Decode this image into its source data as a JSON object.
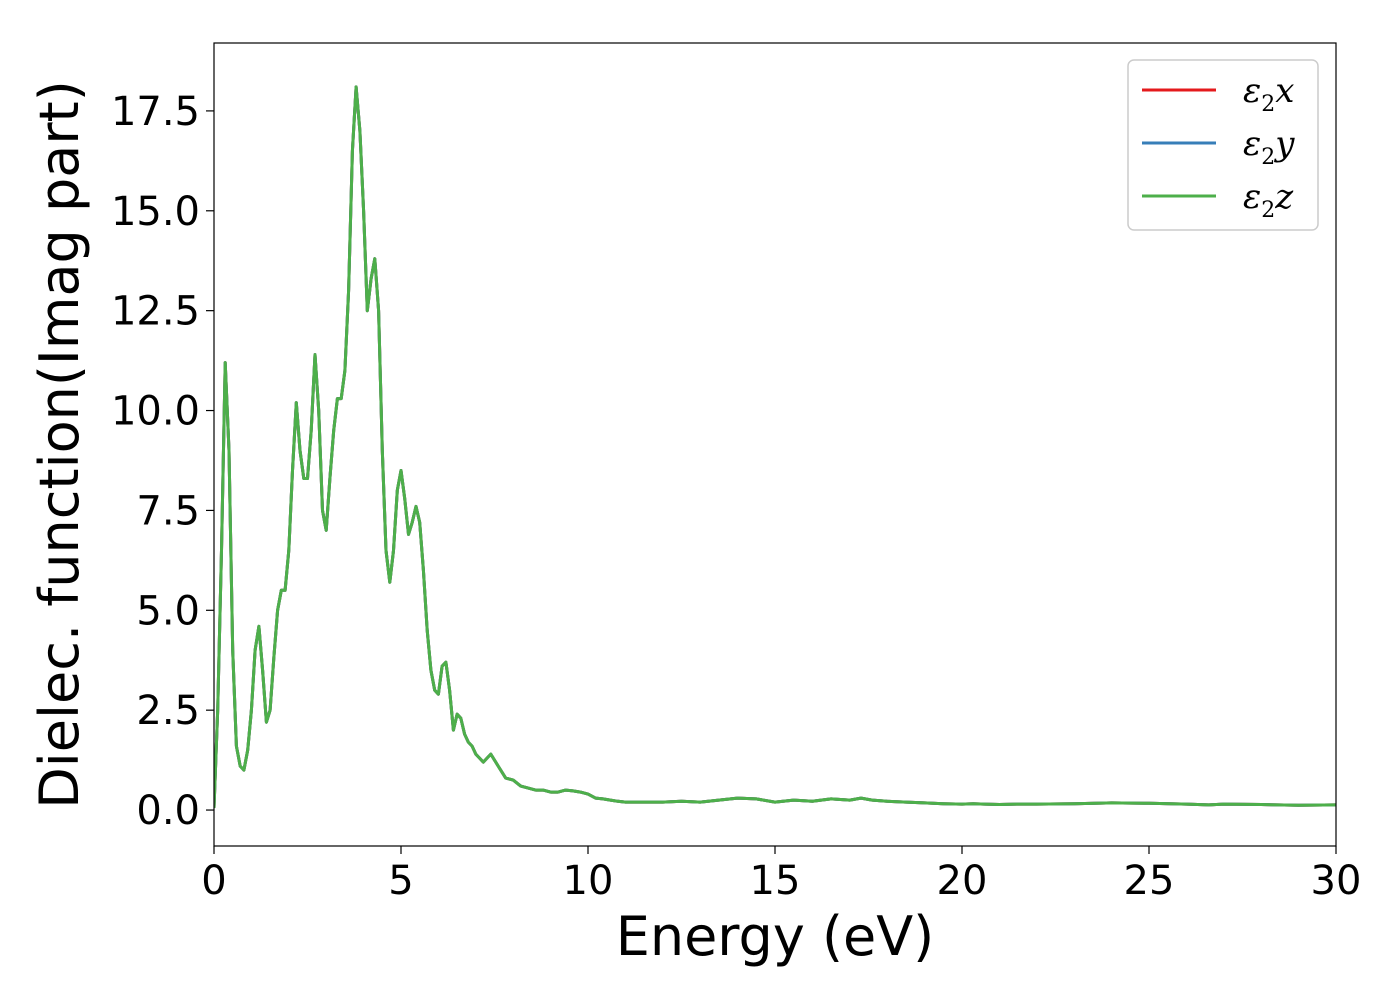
{
  "chart_data": {
    "type": "line",
    "title": "",
    "xlabel": "Energy (eV)",
    "ylabel": "Dielec. function(Imag part)",
    "xlim": [
      0,
      30
    ],
    "ylim": [
      -0.9,
      19.2
    ],
    "xticks": [
      0,
      5,
      10,
      15,
      20,
      25,
      30
    ],
    "xtick_labels": [
      "0",
      "5",
      "10",
      "15",
      "20",
      "25",
      "30"
    ],
    "yticks": [
      0.0,
      2.5,
      5.0,
      7.5,
      10.0,
      12.5,
      15.0,
      17.5
    ],
    "ytick_labels": [
      "0.0",
      "2.5",
      "5.0",
      "7.5",
      "10.0",
      "12.5",
      "15.0",
      "17.5"
    ],
    "grid": false,
    "legend_position": "upper right",
    "series": [
      {
        "name": "ε2x",
        "symbol": "ε",
        "subscript": "2",
        "suffix": "x",
        "color": "#e41a1c",
        "x": [
          0,
          0.1,
          0.2,
          0.3,
          0.4,
          0.5,
          0.6,
          0.7,
          0.8,
          0.9,
          1.0,
          1.1,
          1.2,
          1.3,
          1.4,
          1.5,
          1.6,
          1.7,
          1.8,
          1.9,
          2.0,
          2.1,
          2.2,
          2.3,
          2.4,
          2.5,
          2.6,
          2.7,
          2.8,
          2.9,
          3.0,
          3.1,
          3.2,
          3.3,
          3.4,
          3.5,
          3.6,
          3.7,
          3.8,
          3.9,
          4.0,
          4.1,
          4.2,
          4.3,
          4.4,
          4.5,
          4.6,
          4.7,
          4.8,
          4.9,
          5.0,
          5.1,
          5.2,
          5.3,
          5.4,
          5.5,
          5.6,
          5.7,
          5.8,
          5.9,
          6.0,
          6.1,
          6.2,
          6.3,
          6.4,
          6.5,
          6.6,
          6.7,
          6.8,
          6.9,
          7.0,
          7.2,
          7.4,
          7.6,
          7.8,
          8.0,
          8.2,
          8.4,
          8.6,
          8.8,
          9.0,
          9.2,
          9.4,
          9.6,
          9.8,
          10.0,
          10.2,
          10.4,
          10.6,
          10.8,
          11.0,
          11.5,
          12.0,
          12.5,
          13.0,
          13.5,
          14.0,
          14.5,
          15.0,
          15.5,
          16.0,
          16.5,
          17.0,
          17.3,
          17.6,
          18.0,
          18.5,
          19.0,
          19.5,
          20.0,
          20.3,
          20.6,
          21.0,
          21.5,
          22.0,
          23.0,
          24.0,
          25.0,
          26.0,
          26.6,
          27.0,
          28.0,
          29.0,
          30.0
        ],
        "y": [
          0.05,
          2.5,
          6.5,
          11.2,
          9.0,
          4.0,
          1.6,
          1.1,
          1.0,
          1.5,
          2.5,
          4.0,
          4.6,
          3.5,
          2.2,
          2.5,
          3.8,
          5.0,
          5.5,
          5.5,
          6.5,
          8.5,
          10.2,
          9.0,
          8.3,
          8.3,
          9.5,
          11.4,
          10.0,
          7.5,
          7.0,
          8.3,
          9.5,
          10.3,
          10.3,
          11.0,
          13.0,
          16.5,
          18.1,
          17.0,
          15.0,
          12.5,
          13.3,
          13.8,
          12.5,
          9.0,
          6.5,
          5.7,
          6.5,
          8.0,
          8.5,
          7.8,
          6.9,
          7.2,
          7.6,
          7.2,
          6.0,
          4.5,
          3.5,
          3.0,
          2.9,
          3.6,
          3.7,
          3.0,
          2.0,
          2.4,
          2.3,
          1.9,
          1.7,
          1.6,
          1.4,
          1.2,
          1.4,
          1.1,
          0.8,
          0.75,
          0.6,
          0.55,
          0.5,
          0.5,
          0.45,
          0.45,
          0.5,
          0.48,
          0.45,
          0.4,
          0.3,
          0.28,
          0.25,
          0.22,
          0.2,
          0.2,
          0.2,
          0.22,
          0.2,
          0.25,
          0.3,
          0.28,
          0.2,
          0.25,
          0.22,
          0.28,
          0.25,
          0.3,
          0.25,
          0.22,
          0.2,
          0.18,
          0.16,
          0.15,
          0.16,
          0.15,
          0.14,
          0.15,
          0.15,
          0.16,
          0.18,
          0.17,
          0.15,
          0.13,
          0.15,
          0.14,
          0.12,
          0.13
        ]
      },
      {
        "name": "ε2y",
        "symbol": "ε",
        "subscript": "2",
        "suffix": "y",
        "color": "#377eb8",
        "x": [
          0,
          0.1,
          0.2,
          0.3,
          0.4,
          0.5,
          0.6,
          0.7,
          0.8,
          0.9,
          1.0,
          1.1,
          1.2,
          1.3,
          1.4,
          1.5,
          1.6,
          1.7,
          1.8,
          1.9,
          2.0,
          2.1,
          2.2,
          2.3,
          2.4,
          2.5,
          2.6,
          2.7,
          2.8,
          2.9,
          3.0,
          3.1,
          3.2,
          3.3,
          3.4,
          3.5,
          3.6,
          3.7,
          3.8,
          3.9,
          4.0,
          4.1,
          4.2,
          4.3,
          4.4,
          4.5,
          4.6,
          4.7,
          4.8,
          4.9,
          5.0,
          5.1,
          5.2,
          5.3,
          5.4,
          5.5,
          5.6,
          5.7,
          5.8,
          5.9,
          6.0,
          6.1,
          6.2,
          6.3,
          6.4,
          6.5,
          6.6,
          6.7,
          6.8,
          6.9,
          7.0,
          7.2,
          7.4,
          7.6,
          7.8,
          8.0,
          8.2,
          8.4,
          8.6,
          8.8,
          9.0,
          9.2,
          9.4,
          9.6,
          9.8,
          10.0,
          10.2,
          10.4,
          10.6,
          10.8,
          11.0,
          11.5,
          12.0,
          12.5,
          13.0,
          13.5,
          14.0,
          14.5,
          15.0,
          15.5,
          16.0,
          16.5,
          17.0,
          17.3,
          17.6,
          18.0,
          18.5,
          19.0,
          19.5,
          20.0,
          20.3,
          20.6,
          21.0,
          21.5,
          22.0,
          23.0,
          24.0,
          25.0,
          26.0,
          26.6,
          27.0,
          28.0,
          29.0,
          30.0
        ],
        "y": [
          0.05,
          2.5,
          6.5,
          11.2,
          9.0,
          4.0,
          1.6,
          1.1,
          1.0,
          1.5,
          2.5,
          4.0,
          4.6,
          3.5,
          2.2,
          2.5,
          3.8,
          5.0,
          5.5,
          5.5,
          6.5,
          8.5,
          10.2,
          9.0,
          8.3,
          8.3,
          9.5,
          11.4,
          10.0,
          7.5,
          7.0,
          8.3,
          9.5,
          10.3,
          10.3,
          11.0,
          13.0,
          16.5,
          18.1,
          17.0,
          15.0,
          12.5,
          13.3,
          13.8,
          12.5,
          9.0,
          6.5,
          5.7,
          6.5,
          8.0,
          8.5,
          7.8,
          6.9,
          7.2,
          7.6,
          7.2,
          6.0,
          4.5,
          3.5,
          3.0,
          2.9,
          3.6,
          3.7,
          3.0,
          2.0,
          2.4,
          2.3,
          1.9,
          1.7,
          1.6,
          1.4,
          1.2,
          1.4,
          1.1,
          0.8,
          0.75,
          0.6,
          0.55,
          0.5,
          0.5,
          0.45,
          0.45,
          0.5,
          0.48,
          0.45,
          0.4,
          0.3,
          0.28,
          0.25,
          0.22,
          0.2,
          0.2,
          0.2,
          0.22,
          0.2,
          0.25,
          0.3,
          0.28,
          0.2,
          0.25,
          0.22,
          0.28,
          0.25,
          0.3,
          0.25,
          0.22,
          0.2,
          0.18,
          0.16,
          0.15,
          0.16,
          0.15,
          0.14,
          0.15,
          0.15,
          0.16,
          0.18,
          0.17,
          0.15,
          0.13,
          0.15,
          0.14,
          0.12,
          0.13
        ]
      },
      {
        "name": "ε2z",
        "symbol": "ε",
        "subscript": "2",
        "suffix": "z",
        "color": "#4daf4a",
        "x": [
          0,
          0.1,
          0.2,
          0.3,
          0.4,
          0.5,
          0.6,
          0.7,
          0.8,
          0.9,
          1.0,
          1.1,
          1.2,
          1.3,
          1.4,
          1.5,
          1.6,
          1.7,
          1.8,
          1.9,
          2.0,
          2.1,
          2.2,
          2.3,
          2.4,
          2.5,
          2.6,
          2.7,
          2.8,
          2.9,
          3.0,
          3.1,
          3.2,
          3.3,
          3.4,
          3.5,
          3.6,
          3.7,
          3.8,
          3.9,
          4.0,
          4.1,
          4.2,
          4.3,
          4.4,
          4.5,
          4.6,
          4.7,
          4.8,
          4.9,
          5.0,
          5.1,
          5.2,
          5.3,
          5.4,
          5.5,
          5.6,
          5.7,
          5.8,
          5.9,
          6.0,
          6.1,
          6.2,
          6.3,
          6.4,
          6.5,
          6.6,
          6.7,
          6.8,
          6.9,
          7.0,
          7.2,
          7.4,
          7.6,
          7.8,
          8.0,
          8.2,
          8.4,
          8.6,
          8.8,
          9.0,
          9.2,
          9.4,
          9.6,
          9.8,
          10.0,
          10.2,
          10.4,
          10.6,
          10.8,
          11.0,
          11.5,
          12.0,
          12.5,
          13.0,
          13.5,
          14.0,
          14.5,
          15.0,
          15.5,
          16.0,
          16.5,
          17.0,
          17.3,
          17.6,
          18.0,
          18.5,
          19.0,
          19.5,
          20.0,
          20.3,
          20.6,
          21.0,
          21.5,
          22.0,
          23.0,
          24.0,
          25.0,
          26.0,
          26.6,
          27.0,
          28.0,
          29.0,
          30.0
        ],
        "y": [
          0.05,
          2.5,
          6.5,
          11.2,
          9.0,
          4.0,
          1.6,
          1.1,
          1.0,
          1.5,
          2.5,
          4.0,
          4.6,
          3.5,
          2.2,
          2.5,
          3.8,
          5.0,
          5.5,
          5.5,
          6.5,
          8.5,
          10.2,
          9.0,
          8.3,
          8.3,
          9.5,
          11.4,
          10.0,
          7.5,
          7.0,
          8.3,
          9.5,
          10.3,
          10.3,
          11.0,
          13.0,
          16.5,
          18.1,
          17.0,
          15.0,
          12.5,
          13.3,
          13.8,
          12.5,
          9.0,
          6.5,
          5.7,
          6.5,
          8.0,
          8.5,
          7.8,
          6.9,
          7.2,
          7.6,
          7.2,
          6.0,
          4.5,
          3.5,
          3.0,
          2.9,
          3.6,
          3.7,
          3.0,
          2.0,
          2.4,
          2.3,
          1.9,
          1.7,
          1.6,
          1.4,
          1.2,
          1.4,
          1.1,
          0.8,
          0.75,
          0.6,
          0.55,
          0.5,
          0.5,
          0.45,
          0.45,
          0.5,
          0.48,
          0.45,
          0.4,
          0.3,
          0.28,
          0.25,
          0.22,
          0.2,
          0.2,
          0.2,
          0.22,
          0.2,
          0.25,
          0.3,
          0.28,
          0.2,
          0.25,
          0.22,
          0.28,
          0.25,
          0.3,
          0.25,
          0.22,
          0.2,
          0.18,
          0.16,
          0.15,
          0.16,
          0.15,
          0.14,
          0.15,
          0.15,
          0.16,
          0.18,
          0.17,
          0.15,
          0.13,
          0.15,
          0.14,
          0.12,
          0.13
        ]
      }
    ]
  }
}
